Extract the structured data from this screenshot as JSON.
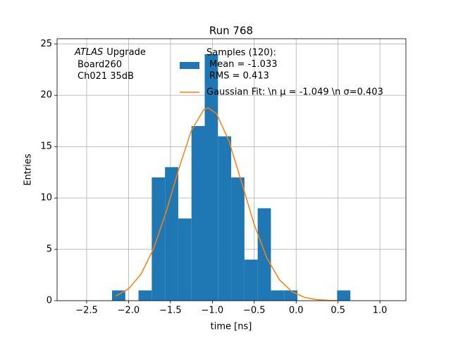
{
  "chart_data": {
    "type": "histogram",
    "title": "Run 768",
    "xlabel": "time [ns]",
    "ylabel": "Entries",
    "annotation": {
      "italic": "ATLAS",
      "lines": [
        "Upgrade",
        "Board260",
        "Ch021 35dB"
      ]
    },
    "bins": [
      -2.197,
      -2.039,
      -1.881,
      -1.723,
      -1.565,
      -1.407,
      -1.249,
      -1.091,
      -0.933,
      -0.775,
      -0.617,
      -0.459,
      -0.301,
      -0.143,
      0.015,
      0.173,
      0.331,
      0.489,
      0.647
    ],
    "series": [
      {
        "type": "histogram",
        "name": [
          "Samples (120):",
          "Mean = -1.033",
          "RMS = 0.413"
        ],
        "color": "#1f77b4",
        "values": [
          1,
          0,
          1,
          12,
          13,
          8,
          17,
          24,
          16,
          12,
          4,
          9,
          1,
          1,
          0,
          0,
          0,
          1
        ]
      },
      {
        "type": "line",
        "name": "Gaussian Fit: \\n μ = -1.049 \\n σ=0.403",
        "color": "#ff7f0e",
        "x": [
          -2.15,
          -2.0,
          -1.85,
          -1.7,
          -1.55,
          -1.4,
          -1.25,
          -1.1,
          -1.05,
          -0.95,
          -0.8,
          -0.65,
          -0.5,
          -0.35,
          -0.2,
          -0.05,
          0.1,
          0.25,
          0.4,
          0.5
        ],
        "values": [
          0.45,
          1.16,
          2.6,
          5.09,
          8.67,
          12.84,
          16.57,
          18.62,
          18.77,
          18.21,
          15.51,
          11.5,
          7.42,
          4.17,
          2.04,
          0.87,
          0.32,
          0.1,
          0.03,
          0.01
        ]
      }
    ],
    "xlim": [
      -2.853,
      1.31
    ],
    "ylim": [
      0,
      25.5
    ],
    "xticks": [
      {
        "value": -2.5,
        "label": "−2.5"
      },
      {
        "value": -2.0,
        "label": "−2.0"
      },
      {
        "value": -1.5,
        "label": "−1.5"
      },
      {
        "value": -1.0,
        "label": "−1.0"
      },
      {
        "value": -0.5,
        "label": "−0.5"
      },
      {
        "value": 0,
        "label": "0.0"
      },
      0.5,
      {
        "value": 1,
        "label": "1.0"
      }
    ],
    "yticks": [
      0,
      5,
      10,
      15,
      20,
      25
    ],
    "grid": true
  }
}
